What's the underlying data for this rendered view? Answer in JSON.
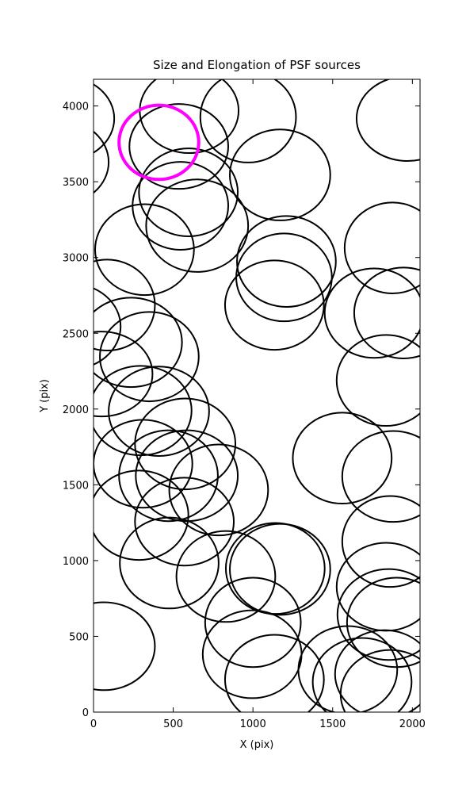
{
  "chart_data": {
    "type": "ellipse",
    "title": "Size and Elongation of PSF sources",
    "xlabel": "X (pix)",
    "ylabel": "Y (pix)",
    "xlim": [
      0,
      2048
    ],
    "ylim": [
      0,
      4176
    ],
    "xticks": [
      0,
      500,
      1000,
      1500,
      2000
    ],
    "yticks": [
      0,
      500,
      1000,
      1500,
      2000,
      2500,
      3000,
      3500,
      4000
    ],
    "series": [
      {
        "color": "#000000",
        "x": [
          600,
          970,
          1970,
          535,
          -190,
          -215,
          595,
          1170,
          545,
          650,
          320,
          1210,
          1195,
          1875,
          1135,
          1760,
          85,
          -150,
          235,
          350,
          50,
          410,
          295,
          575,
          1560,
          1880,
          310,
          470,
          585,
          785,
          570,
          285,
          1860,
          475,
          830,
          1170,
          1140,
          1835,
          1850,
          1900,
          1825,
          995,
          1135,
          1595,
          1685,
          1860,
          1000,
          1945,
          1835,
          65
        ],
        "y": [
          3969,
          3927,
          3917,
          3733,
          3917,
          3629,
          3430,
          3545,
          3341,
          3210,
          3052,
          2974,
          2869,
          3063,
          2686,
          2633,
          2686,
          2545,
          2440,
          2346,
          2231,
          1985,
          1990,
          1770,
          1676,
          1555,
          1639,
          1560,
          1560,
          1466,
          1257,
          1299,
          1126,
          984,
          895,
          942,
          948,
          827,
          644,
          592,
          251,
          382,
          215,
          278,
          199,
          120,
          592,
          2634,
          2189,
          435
        ],
        "width": [
          620,
          600,
          640,
          620,
          640,
          620,
          620,
          630,
          600,
          640,
          620,
          620,
          600,
          600,
          620,
          620,
          600,
          640,
          640,
          620,
          640,
          630,
          640,
          630,
          620,
          640,
          620,
          620,
          640,
          620,
          620,
          620,
          600,
          620,
          620,
          630,
          620,
          620,
          640,
          620,
          620,
          620,
          620,
          620,
          620,
          620,
          600,
          620,
          620,
          640
        ],
        "height": [
          560,
          600,
          560,
          560,
          560,
          560,
          580,
          600,
          580,
          610,
          600,
          600,
          580,
          600,
          590,
          590,
          600,
          570,
          590,
          590,
          560,
          590,
          590,
          600,
          600,
          600,
          580,
          600,
          600,
          600,
          580,
          590,
          600,
          600,
          600,
          600,
          600,
          580,
          600,
          590,
          580,
          580,
          590,
          580,
          580,
          580,
          590,
          600,
          600,
          580
        ]
      },
      {
        "color": "#ff00ff",
        "x": [
          410
        ],
        "y": [
          3760
        ],
        "width": [
          500
        ],
        "height": [
          490
        ]
      }
    ]
  }
}
